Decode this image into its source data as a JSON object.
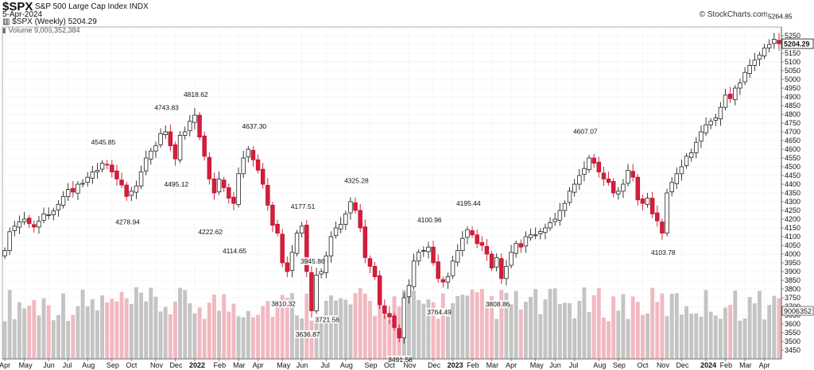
{
  "header": {
    "ticker": "$SPX",
    "subtitle": "S&P 500 Large Cap Index INDX",
    "date": "5-Apr-2024",
    "brand": "© StockCharts.com",
    "legend_price": "$SPX (Weekly) 5204.29",
    "legend_volume": "Volume 9,006,352,384"
  },
  "chart_data": {
    "type": "candlestick",
    "title": "$SPX",
    "subtitle": "S&P 500 Large Cap Index INDX",
    "interval": "Weekly",
    "last_close": 5204.29,
    "last_high": 5264.85,
    "last_volume_label": "9006352",
    "ylim": [
      3400,
      5300
    ],
    "yticks": [
      3450,
      3500,
      3550,
      3600,
      3650,
      3700,
      3750,
      3800,
      3850,
      3900,
      3950,
      4000,
      4050,
      4100,
      4150,
      4200,
      4250,
      4300,
      4350,
      4400,
      4450,
      4500,
      4550,
      4600,
      4650,
      4700,
      4750,
      4800,
      4850,
      4900,
      4950,
      5000,
      5050,
      5100,
      5150,
      5200,
      5250
    ],
    "x_labels": [
      {
        "i": 0,
        "t": "Apr"
      },
      {
        "i": 4,
        "t": "May"
      },
      {
        "i": 9,
        "t": "Jun"
      },
      {
        "i": 13,
        "t": "Jul"
      },
      {
        "i": 17,
        "t": "Aug"
      },
      {
        "i": 22,
        "t": "Sep"
      },
      {
        "i": 26,
        "t": "Oct"
      },
      {
        "i": 31,
        "t": "Nov"
      },
      {
        "i": 35,
        "t": "Dec"
      },
      {
        "i": 39,
        "t": "2022",
        "year": true
      },
      {
        "i": 44,
        "t": "Feb"
      },
      {
        "i": 48,
        "t": "Mar"
      },
      {
        "i": 52,
        "t": "Apr"
      },
      {
        "i": 57,
        "t": "May"
      },
      {
        "i": 61,
        "t": "Jun"
      },
      {
        "i": 66,
        "t": "Jul"
      },
      {
        "i": 70,
        "t": "Aug"
      },
      {
        "i": 75,
        "t": "Sep"
      },
      {
        "i": 79,
        "t": "Oct"
      },
      {
        "i": 83,
        "t": "Nov"
      },
      {
        "i": 88,
        "t": "Dec"
      },
      {
        "i": 92,
        "t": "2023",
        "year": true
      },
      {
        "i": 96,
        "t": "Feb"
      },
      {
        "i": 100,
        "t": "Mar"
      },
      {
        "i": 104,
        "t": "Apr"
      },
      {
        "i": 109,
        "t": "May"
      },
      {
        "i": 113,
        "t": "Jun"
      },
      {
        "i": 117,
        "t": "Jul"
      },
      {
        "i": 122,
        "t": "Aug"
      },
      {
        "i": 126,
        "t": "Sep"
      },
      {
        "i": 131,
        "t": "Oct"
      },
      {
        "i": 135,
        "t": "Nov"
      },
      {
        "i": 139,
        "t": "Dec"
      },
      {
        "i": 144,
        "t": "2024",
        "year": true
      },
      {
        "i": 148,
        "t": "Feb"
      },
      {
        "i": 152,
        "t": "Mar"
      },
      {
        "i": 156,
        "t": "Apr"
      }
    ],
    "annotations": [
      {
        "i": 20,
        "v": 4545.85,
        "pos": "above"
      },
      {
        "i": 33,
        "v": 4743.83,
        "pos": "above"
      },
      {
        "i": 35,
        "v": 4495.12,
        "pos": "below"
      },
      {
        "i": 39,
        "v": 4818.62,
        "pos": "above"
      },
      {
        "i": 25,
        "v": 4278.94,
        "pos": "below"
      },
      {
        "i": 42,
        "v": 4222.62,
        "pos": "below"
      },
      {
        "i": 51,
        "v": 4637.3,
        "pos": "above"
      },
      {
        "i": 47,
        "v": 4114.65,
        "pos": "below"
      },
      {
        "i": 61,
        "v": 4177.51,
        "pos": "above"
      },
      {
        "i": 57,
        "v": 3810.32,
        "pos": "below"
      },
      {
        "i": 63,
        "v": 3945.86,
        "pos": "label"
      },
      {
        "i": 62,
        "v": 3636.87,
        "pos": "below"
      },
      {
        "i": 66,
        "v": 3721.56,
        "pos": "below"
      },
      {
        "i": 72,
        "v": 4325.28,
        "pos": "above"
      },
      {
        "i": 81,
        "v": 3491.58,
        "pos": "below"
      },
      {
        "i": 87,
        "v": 4100.96,
        "pos": "above"
      },
      {
        "i": 89,
        "v": 3764.49,
        "pos": "below"
      },
      {
        "i": 95,
        "v": 4195.44,
        "pos": "above"
      },
      {
        "i": 101,
        "v": 3808.86,
        "pos": "below"
      },
      {
        "i": 119,
        "v": 4607.07,
        "pos": "above"
      },
      {
        "i": 135,
        "v": 4103.78,
        "pos": "below"
      },
      {
        "i": 159,
        "v": 5264.85,
        "pos": "above"
      }
    ],
    "closes": [
      4020,
      4128,
      4160,
      4185,
      4200,
      4175,
      4155,
      4188,
      4230,
      4225,
      4247,
      4285,
      4330,
      4370,
      4355,
      4400,
      4405,
      4440,
      4470,
      4480,
      4520,
      4510,
      4470,
      4430,
      4395,
      4330,
      4360,
      4390,
      4470,
      4550,
      4590,
      4620,
      4690,
      4700,
      4620,
      4545,
      4680,
      4700,
      4760,
      4795,
      4670,
      4560,
      4430,
      4350,
      4430,
      4380,
      4320,
      4290,
      4460,
      4550,
      4600,
      4540,
      4480,
      4400,
      4280,
      4165,
      4120,
      3950,
      3900,
      4010,
      4120,
      4160,
      3900,
      3675,
      3880,
      3900,
      3990,
      4100,
      4150,
      4170,
      4230,
      4300,
      4250,
      4150,
      3980,
      3930,
      3870,
      3710,
      3660,
      3640,
      3580,
      3520,
      3750,
      3820,
      3960,
      4010,
      4020,
      4040,
      3950,
      3860,
      3840,
      3870,
      3960,
      4020,
      4090,
      4140,
      4110,
      4060,
      4050,
      4000,
      3920,
      3980,
      3860,
      3930,
      4010,
      4060,
      4040,
      4100,
      4110,
      4110,
      4130,
      4150,
      4180,
      4200,
      4250,
      4290,
      4360,
      4400,
      4450,
      4490,
      4550,
      4520,
      4470,
      4430,
      4410,
      4350,
      4360,
      4400,
      4480,
      4440,
      4310,
      4290,
      4320,
      4230,
      4190,
      4120,
      4350,
      4410,
      4460,
      4500,
      4560,
      4580,
      4640,
      4700,
      4740,
      4760,
      4780,
      4840,
      4910,
      4890,
      4950,
      4980,
      5040,
      5080,
      5110,
      5140,
      5180,
      5200,
      5230,
      5204.29
    ],
    "volume_range": [
      0,
      10000
    ],
    "volume_note": "Weekly volume bars shown along bottom; recent weeks around 9,006,352,384"
  }
}
